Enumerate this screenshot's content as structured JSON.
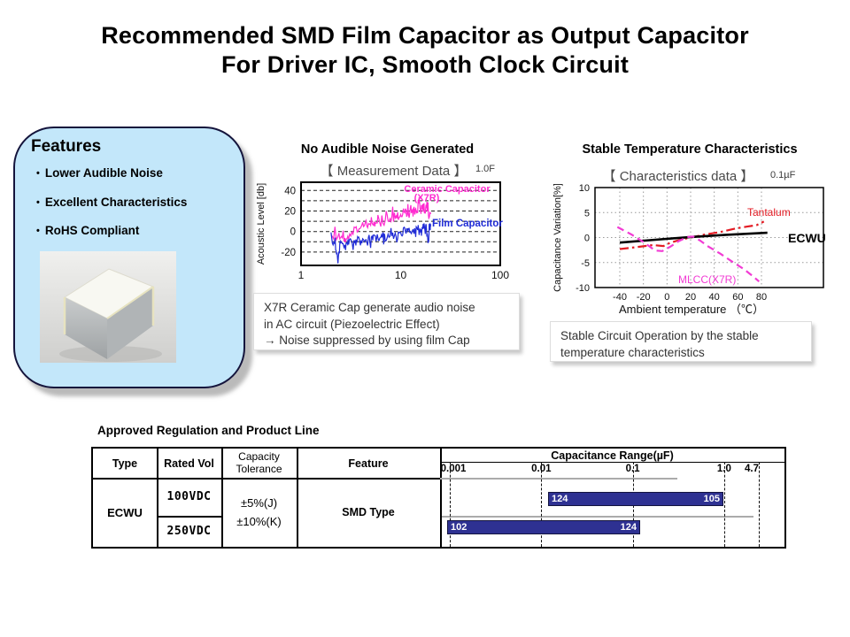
{
  "title": {
    "line1": "Recommended SMD Film Capacitor as Output Capacitor",
    "line2": "For Driver IC, Smooth Clock Circuit"
  },
  "features": {
    "heading": "Features",
    "bullet": "•",
    "items": [
      "Lower Audible Noise",
      "Excellent Characteristics",
      "RoHS Compliant"
    ],
    "panel_color": "#c3e7fa",
    "photo_alt": "smd-film-capacitor-photo"
  },
  "captions": {
    "noise": "X7R Ceramic Cap generate audio noise\nin AC circuit (Piezoelectric Effect)\n→  Noise suppressed by using film Cap",
    "temp": "Stable Circuit Operation by  the stable\ntemperature characteristics"
  },
  "chart_data": [
    {
      "id": "noise",
      "type": "line",
      "title": "No Audible Noise Generated",
      "subtitle": "【 Measurement Data 】",
      "condition": "1.0F",
      "xlabel": "",
      "ylabel": "Acoustic Level [db]",
      "x_scale": "log",
      "xlim": [
        1,
        100
      ],
      "ylim": [
        -33,
        48
      ],
      "xticks": [
        1,
        10,
        100
      ],
      "yticks": [
        40,
        20,
        0,
        -20
      ],
      "gridlines_y": [
        40,
        30,
        20,
        10,
        0,
        -10,
        -20
      ],
      "grid_style": "dashed",
      "series": [
        {
          "name": "Ceramic Capacitor (X7R)",
          "label_lines": [
            "Ceramic Capacitor",
            "(X7R)"
          ],
          "color": "#ff2bd0",
          "noise_amp": 5.5,
          "points": [
            [
              2,
              -5
            ],
            [
              2.4,
              -3
            ],
            [
              2.7,
              -8
            ],
            [
              3,
              -2
            ],
            [
              3.5,
              2
            ],
            [
              4,
              6
            ],
            [
              4.5,
              4
            ],
            [
              5,
              9
            ],
            [
              5.5,
              7
            ],
            [
              6,
              12
            ],
            [
              7,
              11
            ],
            [
              8,
              15
            ],
            [
              9,
              14
            ],
            [
              10,
              17
            ],
            [
              11,
              20
            ],
            [
              12,
              17
            ],
            [
              13,
              22
            ],
            [
              14,
              20
            ],
            [
              15,
              24
            ],
            [
              16,
              21
            ],
            [
              17,
              25
            ],
            [
              18,
              22
            ],
            [
              19,
              20
            ],
            [
              20,
              17
            ]
          ]
        },
        {
          "name": "Film Capacitor",
          "label_lines": [
            "Film Capacitor"
          ],
          "color": "#1f2bd6",
          "noise_amp": 4,
          "points": [
            [
              2,
              -8
            ],
            [
              2.2,
              -12
            ],
            [
              2.35,
              -28
            ],
            [
              2.5,
              -9
            ],
            [
              2.8,
              -13
            ],
            [
              3,
              -9
            ],
            [
              3.4,
              -13
            ],
            [
              3.7,
              -8
            ],
            [
              4,
              -10
            ],
            [
              4.5,
              -7
            ],
            [
              5,
              -9
            ],
            [
              5.5,
              -5
            ],
            [
              6,
              -7
            ],
            [
              6.5,
              -4
            ],
            [
              7,
              -6
            ],
            [
              8,
              -3
            ],
            [
              9,
              -5
            ],
            [
              10,
              -1
            ],
            [
              11,
              1
            ],
            [
              12,
              -1
            ],
            [
              13,
              2
            ],
            [
              14,
              1
            ],
            [
              15,
              3
            ],
            [
              16,
              3
            ],
            [
              17,
              5
            ],
            [
              18,
              4
            ],
            [
              19,
              -13
            ],
            [
              19.4,
              6
            ],
            [
              20,
              5
            ]
          ]
        }
      ]
    },
    {
      "id": "temp",
      "type": "line",
      "title": "Stable Temperature Characteristics",
      "subtitle": "【 Characteristics data 】",
      "condition": "0.1µF",
      "xlabel": "Ambient temperature （℃）",
      "ylabel": "Capacitance Variation[%]",
      "x_scale": "linear",
      "xlim": [
        -55,
        95
      ],
      "ylim": [
        -10,
        10
      ],
      "xticks": [
        -40,
        -20,
        0,
        20,
        40,
        60,
        80
      ],
      "yticks": [
        10,
        5,
        0,
        -5,
        -10
      ],
      "grid_style": "dotted",
      "series": [
        {
          "name": "Tantalum",
          "color": "#e31b23",
          "style": "dashdot",
          "points": [
            [
              -40,
              -2.3
            ],
            [
              -25,
              -1.9
            ],
            [
              -12,
              -1.5
            ],
            [
              -3,
              -1.7
            ],
            [
              3,
              -1.0
            ],
            [
              12,
              -0.4
            ],
            [
              22,
              0.1
            ],
            [
              32,
              0.6
            ],
            [
              45,
              1.1
            ],
            [
              58,
              1.8
            ],
            [
              68,
              2.2
            ],
            [
              76,
              2.5
            ],
            [
              82,
              3.2
            ]
          ]
        },
        {
          "name": "ECWU",
          "color": "#000000",
          "style": "solid",
          "points": [
            [
              -40,
              -1.0
            ],
            [
              -10,
              -0.45
            ],
            [
              20,
              0.1
            ],
            [
              50,
              0.55
            ],
            [
              85,
              0.95
            ]
          ]
        },
        {
          "name": "MLCC(X7R)",
          "color": "#f23bd4",
          "style": "dash",
          "points": [
            [
              -42,
              2.1
            ],
            [
              -30,
              0.6
            ],
            [
              -20,
              -0.9
            ],
            [
              -10,
              -2.6
            ],
            [
              -4,
              -2.7
            ],
            [
              3,
              -1.8
            ],
            [
              10,
              -0.7
            ],
            [
              17,
              0.1
            ],
            [
              22,
              0.2
            ],
            [
              28,
              -0.6
            ],
            [
              35,
              -1.8
            ],
            [
              45,
              -3.2
            ],
            [
              55,
              -4.8
            ],
            [
              65,
              -6.3
            ],
            [
              72,
              -7.6
            ],
            [
              78,
              -8.8
            ]
          ]
        }
      ]
    }
  ],
  "table": {
    "title": "Approved Regulation and Product Line",
    "col_headers": [
      "Type",
      "Rated Vol",
      "Capacity\nTolerance",
      "Feature"
    ],
    "range_header": "Capacitance Range(µF)",
    "scale": [
      "0.001",
      "0.01",
      "0.1",
      "1.0",
      "4.7"
    ],
    "type_value": "ECWU",
    "rated_rows": [
      "100VDC",
      "250VDC"
    ],
    "tolerance_lines": [
      "±5%(J)",
      "±10%(K)"
    ],
    "feature_value": "SMD Type",
    "bar_color": "#2e3192",
    "bars": [
      {
        "row": 0,
        "start_label": "124",
        "end_label": "105",
        "start_uF": 0.012,
        "end_uF": 1.0
      },
      {
        "row": 1,
        "start_label": "102",
        "end_label": "124",
        "start_uF": 0.001,
        "end_uF": 0.12
      }
    ]
  }
}
